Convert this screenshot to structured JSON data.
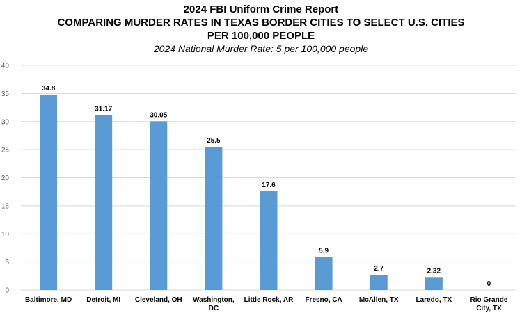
{
  "chart_data": {
    "type": "bar",
    "title_lines": [
      "2024 FBI Uniform Crime Report",
      "COMPARING MURDER RATES IN TEXAS BORDER CITIES TO SELECT U.S. CITIES",
      "PER 100,000 PEOPLE"
    ],
    "subtitle": "2024 National Murder Rate: 5 per 100,000 people",
    "categories": [
      [
        "Baltimore, MD"
      ],
      [
        "Detroit, MI"
      ],
      [
        "Cleveland, OH"
      ],
      [
        "Washington,",
        "DC"
      ],
      [
        "Little Rock, AR"
      ],
      [
        "Fresno, CA"
      ],
      [
        "McAllen, TX"
      ],
      [
        "Laredo, TX"
      ],
      [
        "Rio Grande",
        "City, TX"
      ]
    ],
    "values": [
      34.8,
      31.17,
      30.05,
      25.5,
      17.6,
      5.9,
      2.7,
      2.32,
      0
    ],
    "value_labels": [
      "34.8",
      "31.17",
      "30.05",
      "25.5",
      "17.6",
      "5.9",
      "2.7",
      "2.32",
      "0"
    ],
    "ylim": [
      0,
      40
    ],
    "yticks": [
      0,
      5,
      10,
      15,
      20,
      25,
      30,
      35,
      40
    ],
    "grid": true,
    "legend": "none",
    "bar_color": "#5B9BD5",
    "grid_color": "#D9D9D9"
  }
}
